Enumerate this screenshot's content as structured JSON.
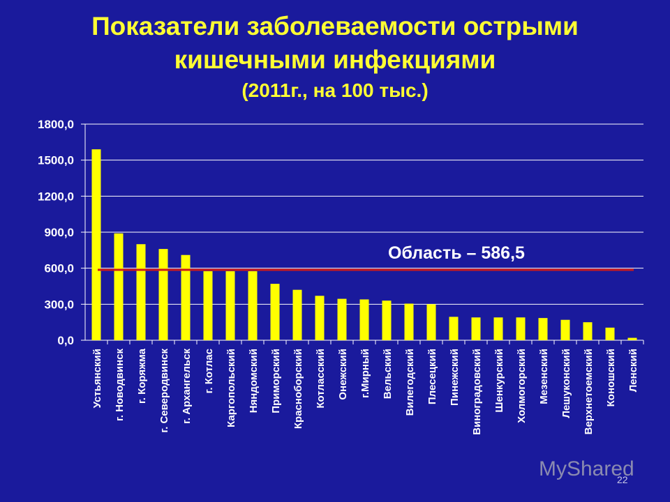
{
  "slide": {
    "title_line1": "Показатели заболеваемости острыми",
    "title_line2": "кишечными инфекциями",
    "subtitle": "(2011г., на 100 тыс.)",
    "watermark": "MyShared",
    "slide_number": "22"
  },
  "colors": {
    "background": "#1a1a9c",
    "bar": "#ffff00",
    "title": "#ffff33",
    "reference_line": "#cc1a1a",
    "axis_text": "#ffffff"
  },
  "chart_data": {
    "type": "bar",
    "title": "",
    "xlabel": "",
    "ylabel": "",
    "ylim": [
      0,
      1800
    ],
    "yticks": [
      "1800,0",
      "1500,0",
      "1200,0",
      "900,0",
      "600,0",
      "300,0",
      "0,0"
    ],
    "ytick_values": [
      1800,
      1500,
      1200,
      900,
      600,
      300,
      0
    ],
    "grid": true,
    "categories": [
      "Устьянский",
      "г. Новодвинск",
      "г. Коряжма",
      "г. Северодвинск",
      "г. Архангельск",
      "г. Котлас",
      "Каргопольский",
      "Няндомский",
      "Приморский",
      "Красноборский",
      "Котласский",
      "Онежский",
      "г.Мирный",
      "Вельский",
      "Вилегодский",
      "Плесецкий",
      "Пинежский",
      "Виноградовский",
      "Шенкурский",
      "Холмогорский",
      "Мезенский",
      "Лешуконский",
      "Верхнетоемский",
      "Коношский",
      "Ленский"
    ],
    "values": [
      1590,
      890,
      800,
      760,
      710,
      575,
      575,
      575,
      470,
      420,
      370,
      345,
      340,
      330,
      305,
      300,
      195,
      190,
      190,
      190,
      185,
      170,
      150,
      105,
      20
    ],
    "reference": {
      "label": "Область – 586,5",
      "value": 586.5
    }
  }
}
